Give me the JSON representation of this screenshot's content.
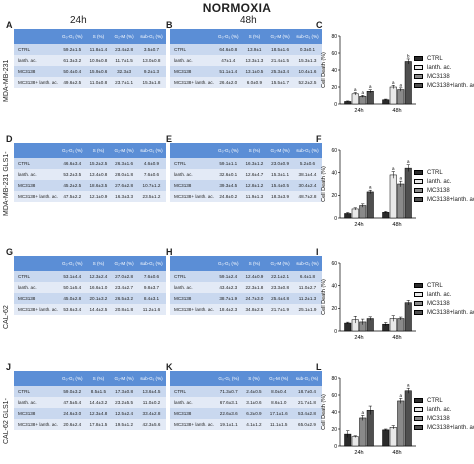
{
  "figure": {
    "title": "NORMOXIA",
    "col_24h": "24h",
    "col_48h": "48h",
    "rows": [
      {
        "label": "MDA-MB-231",
        "left": "A",
        "mid": "B",
        "right": "C"
      },
      {
        "label": "MDA-MB-231 GLS1-",
        "left": "D",
        "mid": "E",
        "right": "F"
      },
      {
        "label": "CAL-62",
        "left": "G",
        "mid": "H",
        "right": "I"
      },
      {
        "label": "CAL-62 GLS1-",
        "left": "J",
        "mid": "K",
        "right": "L"
      }
    ]
  },
  "table_headers": [
    "",
    "G₀-G₁ (%)",
    "S (%)",
    "G₂-M (%)",
    "sub-G₁ (%)"
  ],
  "tables": [
    {
      "rows": [
        [
          "CTRL",
          "59.2±1.5",
          "11.8±1.4",
          "23.4±2.8",
          "3.5±0.7"
        ],
        [
          "lanth. ac.",
          "61.3±3.2",
          "10.9±0.8",
          "11.7±1.5",
          "13.0±0.8"
        ],
        [
          "MC3138",
          "50.4±0.4",
          "15.9±0.6",
          "32.3±3",
          "9.2±1.3"
        ],
        [
          "MC3138+ lanth. ac.",
          "49.6±2.5",
          "11.0±0.8",
          "23.7±1.1",
          "15.3±1.8"
        ]
      ]
    },
    {
      "rows": [
        [
          "CTRL",
          "64.6±0.8",
          "13.9±1",
          "18.5±1.6",
          "0.3±0.1"
        ],
        [
          "lanth. ac.",
          "47±1.4",
          "13.3±1.3",
          "21.4±1.5",
          "15.3±1.3"
        ],
        [
          "MC3138",
          "51.1±1.4",
          "13.1±0.5",
          "25.3±3.4",
          "10.4±1.6"
        ],
        [
          "MC3138+ lanth. ac.",
          "26.4±2.0",
          "6.0±0.9",
          "15.5±1.7",
          "52.2±2.5"
        ]
      ]
    },
    {
      "rows": [
        [
          "CTRL",
          "46.6±3.4",
          "15.2±2.5",
          "26.3±1.6",
          "4.6±0.9"
        ],
        [
          "lanth. ac.",
          "53.2±3.5",
          "13.4±0.8",
          "28.0±1.8",
          "7.6±0.6"
        ],
        [
          "MC3138",
          "45.2±2.5",
          "18.6±3.5",
          "27.6±2.8",
          "10.7±1.2"
        ],
        [
          "MC3138+ lanth. ac.",
          "47.5±2.2",
          "12.1±0.9",
          "16.3±3.3",
          "23.5±1.2"
        ]
      ]
    },
    {
      "rows": [
        [
          "CTRL",
          "59.1±1.1",
          "16.3±1.2",
          "23.0±0.9",
          "5.2±0.6"
        ],
        [
          "lanth. ac.",
          "32.6±0.1",
          "12.6±4.7",
          "15.3±1.1",
          "38.1±4.4"
        ],
        [
          "MC3138",
          "39.3±4.5",
          "12.8±1.2",
          "15.4±0.5",
          "30.4±2.4"
        ],
        [
          "MC3138+ lanth. ac.",
          "24.8±0.2",
          "11.9±1.3",
          "18.3±3.9",
          "48.7±2.8"
        ]
      ]
    },
    {
      "rows": [
        [
          "CTRL",
          "53.1±4.4",
          "12.3±2.4",
          "27.0±2.8",
          "7.6±0.6"
        ],
        [
          "lanth. ac.",
          "50.1±5.4",
          "16.6±1.0",
          "23.4±2.7",
          "9.8±3.7"
        ],
        [
          "MC3138",
          "45.0±2.8",
          "20.1±3.2",
          "26.5±3.2",
          "8.4±3.1"
        ],
        [
          "MC3138+ lanth. ac.",
          "53.6±3.4",
          "14.4±2.5",
          "20.8±1.8",
          "11.2±1.6"
        ]
      ]
    },
    {
      "rows": [
        [
          "CTRL",
          "59.1±2.4",
          "12.4±0.9",
          "22.1±2.1",
          "6.4±1.8"
        ],
        [
          "lanth. ac.",
          "43.4±2.3",
          "22.3±1.8",
          "23.3±0.8",
          "11.0±2.7"
        ],
        [
          "MC3138",
          "38.7±1.9",
          "24.7±3.0",
          "25.4±4.8",
          "11.2±1.3"
        ],
        [
          "MC3138+ lanth. ac.",
          "18.4±2.3",
          "34.8±2.5",
          "21.7±1.9",
          "25.1±1.9"
        ]
      ]
    },
    {
      "rows": [
        [
          "CTRL",
          "59.0±3.2",
          "8.5±1.5",
          "17.3±0.8",
          "13.6±4.5"
        ],
        [
          "lanth. ac.",
          "47.5±5.4",
          "14.4±3.2",
          "23.2±5.5",
          "11.0±0.2"
        ],
        [
          "MC3138",
          "24.6±3.0",
          "12.3±4.8",
          "12.5±2.4",
          "33.4±2.8"
        ],
        [
          "MC3138+ lanth. ac.",
          "20.6±2.4",
          "17.8±1.5",
          "19.5±1.2",
          "42.3±5.6"
        ]
      ]
    },
    {
      "rows": [
        [
          "CTRL",
          "71.3±0.7",
          "2.4±0.5",
          "8.0±0.4",
          "18.7±0.4"
        ],
        [
          "lanth. ac.",
          "67.6±3.1",
          "3.1±0.6",
          "8.6±1.0",
          "21.7±1.8"
        ],
        [
          "MC3138",
          "22.6±3.6",
          "6.2±0.9",
          "17.1±1.6",
          "53.4±2.8"
        ],
        [
          "MC3138+ lanth. ac.",
          "19.1±1.1",
          "4.1±1.2",
          "11.1±1.5",
          "65.0±2.9"
        ]
      ]
    }
  ],
  "chart_data": [
    {
      "type": "bar",
      "categories": [
        "24h",
        "48h"
      ],
      "ylabel": "Cell Death (%)",
      "ylim": [
        0,
        80
      ],
      "yticks": [
        0,
        20,
        40,
        60,
        80
      ],
      "series": [
        {
          "name": "CTRL",
          "values": [
            3,
            5
          ],
          "errors": [
            0.6,
            0.8
          ]
        },
        {
          "name": "lanth. ac.",
          "values": [
            12,
            20
          ],
          "errors": [
            1.5,
            2
          ]
        },
        {
          "name": "MC3138",
          "values": [
            9,
            17
          ],
          "errors": [
            1.2,
            2
          ]
        },
        {
          "name": "MC3138+lanth. ac.",
          "values": [
            15,
            50
          ],
          "errors": [
            1.8,
            3
          ]
        }
      ],
      "markers": [
        [
          "",
          "a",
          "a",
          "a"
        ],
        [
          "",
          "a",
          "a",
          "b"
        ]
      ]
    },
    {
      "type": "bar",
      "categories": [
        "24h",
        "48h"
      ],
      "ylabel": "Cell Death (%)",
      "ylim": [
        0,
        60
      ],
      "yticks": [
        0,
        20,
        40,
        60
      ],
      "series": [
        {
          "name": "CTRL",
          "values": [
            4,
            5
          ],
          "errors": [
            0.8,
            0.8
          ]
        },
        {
          "name": "lanth. ac.",
          "values": [
            8,
            38
          ],
          "errors": [
            1,
            3
          ]
        },
        {
          "name": "MC3138",
          "values": [
            11,
            30
          ],
          "errors": [
            1.5,
            2.5
          ]
        },
        {
          "name": "MC3138+lanth. ac.",
          "values": [
            23,
            44
          ],
          "errors": [
            1.5,
            3
          ]
        }
      ],
      "markers": [
        [
          "",
          "",
          "",
          "a"
        ],
        [
          "",
          "a",
          "a",
          "a"
        ]
      ]
    },
    {
      "type": "bar",
      "categories": [
        "24h",
        "48h"
      ],
      "ylabel": "Cell Death (%)",
      "ylim": [
        0,
        60
      ],
      "yticks": [
        0,
        20,
        40,
        60
      ],
      "series": [
        {
          "name": "CTRL",
          "values": [
            7,
            6
          ],
          "errors": [
            0.8,
            1.5
          ]
        },
        {
          "name": "lanth. ac.",
          "values": [
            10,
            11
          ],
          "errors": [
            3,
            2.5
          ]
        },
        {
          "name": "MC3138",
          "values": [
            8,
            11
          ],
          "errors": [
            2.5,
            1.3
          ]
        },
        {
          "name": "MC3138+lanth. ac.",
          "values": [
            11,
            25
          ],
          "errors": [
            1.5,
            2
          ]
        }
      ],
      "markers": [
        [
          "",
          "",
          "",
          ""
        ],
        [
          "",
          "",
          "",
          ""
        ]
      ]
    },
    {
      "type": "bar",
      "categories": [
        "24h",
        "48h"
      ],
      "ylabel": "Cell Death (%)",
      "ylim": [
        0,
        80
      ],
      "yticks": [
        0,
        20,
        40,
        60,
        80
      ],
      "series": [
        {
          "name": "CTRL",
          "values": [
            14,
            19
          ],
          "errors": [
            4,
            1
          ]
        },
        {
          "name": "lanth. ac.",
          "values": [
            11,
            22
          ],
          "errors": [
            1,
            2
          ]
        },
        {
          "name": "MC3138",
          "values": [
            33,
            53
          ],
          "errors": [
            3,
            3
          ]
        },
        {
          "name": "MC3138+lanth. ac.",
          "values": [
            42,
            65
          ],
          "errors": [
            5,
            3
          ]
        }
      ],
      "markers": [
        [
          "",
          "",
          "a",
          ""
        ],
        [
          "",
          "",
          "a",
          "a"
        ]
      ]
    }
  ]
}
